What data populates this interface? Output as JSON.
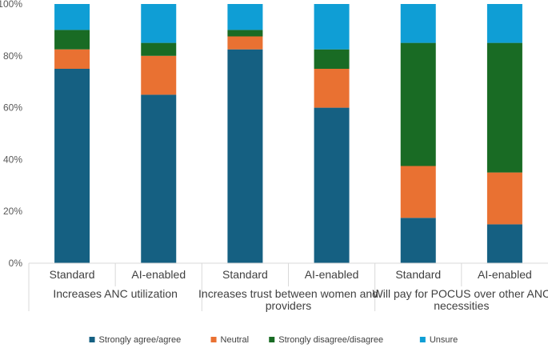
{
  "chart_data": {
    "type": "bar",
    "stacked": true,
    "grid": false,
    "legend_position": "bottom",
    "ylim": [
      0,
      100
    ],
    "y_ticks": [
      "0%",
      "20%",
      "40%",
      "60%",
      "80%",
      "100%"
    ],
    "groups": [
      "Increases ANC utilization",
      "Increases trust between women and providers",
      "Will pay for POCUS over other ANC necessities"
    ],
    "group_lines": [
      [
        "Increases ANC utilization"
      ],
      [
        "Increases trust between women and",
        "providers"
      ],
      [
        "Will pay for POCUS over other ANC",
        "necessities"
      ]
    ],
    "subcategories": [
      "Standard",
      "AI-enabled",
      "Standard",
      "AI-enabled",
      "Standard",
      "AI-enabled"
    ],
    "series": [
      {
        "name": "Strongly agree/agree",
        "color": "#156082",
        "values": [
          75,
          65,
          82.5,
          60,
          17.5,
          15
        ]
      },
      {
        "name": "Neutral",
        "color": "#E97132",
        "values": [
          7.5,
          15,
          5,
          15,
          20,
          20
        ]
      },
      {
        "name": "Strongly disagree/disagree",
        "color": "#196B24",
        "values": [
          7.5,
          5,
          2.5,
          7.5,
          47.5,
          50
        ]
      },
      {
        "name": "Unsure",
        "color": "#0F9ED5",
        "values": [
          10,
          15,
          10,
          17.5,
          15,
          15
        ]
      }
    ]
  }
}
